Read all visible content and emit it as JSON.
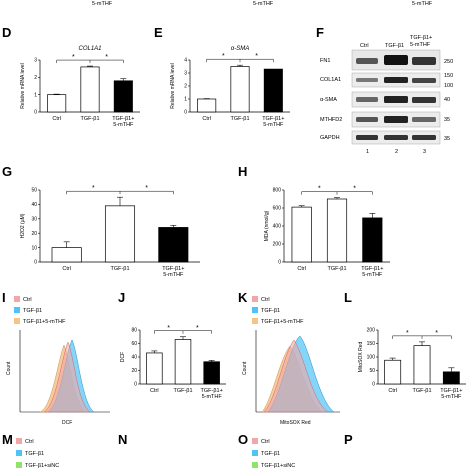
{
  "top_captions": [
    "5-mTHF",
    "5-mTHF",
    "5-mTHF"
  ],
  "panel_labels": [
    "D",
    "E",
    "F",
    "G",
    "H",
    "I",
    "J",
    "K",
    "L",
    "M",
    "N",
    "O",
    "P"
  ],
  "categories": [
    "Ctrl",
    "TGF-β1",
    "TGF-β1+ 5-mTHF"
  ],
  "colors": {
    "ctrl": "#ffffff",
    "tgf": "#ffffff",
    "mthf": "#000000",
    "hist_ctrl": "#f4a6a6",
    "hist_tgf": "#4fc3f7",
    "hist_mthf": "#f5c48a",
    "hist_sinc": "#8fe36b"
  },
  "chart_data": [
    {
      "id": "D",
      "type": "bar",
      "title": "COL1A1",
      "ylabel": "Relative mRNA level",
      "ylim": [
        0,
        3
      ],
      "yticks": [
        "0",
        "1",
        "2",
        "3"
      ],
      "categories": [
        "Ctrl",
        "TGF-β1",
        "TGF-β1+ 5-mTHF"
      ],
      "values": [
        1.0,
        2.6,
        1.8
      ],
      "errors": [
        0.03,
        0.05,
        0.12
      ],
      "sig": [
        "*",
        "*"
      ]
    },
    {
      "id": "E",
      "type": "bar",
      "title": "α-SMA",
      "ylabel": "Relative mRNA level",
      "ylim": [
        0,
        4
      ],
      "yticks": [
        "0",
        "1",
        "2",
        "3",
        "4"
      ],
      "categories": [
        "Ctrl",
        "TGF-β1",
        "TGF-β1+ 5-mTHF"
      ],
      "values": [
        1.0,
        3.5,
        3.3
      ],
      "errors": [
        0.03,
        0.1,
        0.0
      ],
      "sig": [
        "*",
        "*"
      ]
    },
    {
      "id": "G",
      "type": "bar",
      "title": "",
      "ylabel": "H2O2 (μM)",
      "ylim": [
        0,
        50
      ],
      "yticks": [
        "0",
        "10",
        "20",
        "30",
        "40",
        "50"
      ],
      "categories": [
        "Ctrl",
        "TGF-β1",
        "TGF-β1+ 5-mTHF"
      ],
      "values": [
        10,
        39,
        24
      ],
      "errors": [
        4,
        6,
        1.5
      ],
      "sig": [
        "*",
        "*"
      ]
    },
    {
      "id": "H",
      "type": "bar",
      "title": "",
      "ylabel": "MDA (nmol/g)",
      "ylim": [
        0,
        800
      ],
      "yticks": [
        "0",
        "200",
        "400",
        "600",
        "800"
      ],
      "categories": [
        "Ctrl",
        "TGF-β1",
        "TGF-β1+ 5-mTHF"
      ],
      "values": [
        610,
        700,
        490
      ],
      "errors": [
        15,
        15,
        50
      ],
      "sig": [
        "*",
        "*"
      ]
    },
    {
      "id": "J",
      "type": "bar",
      "title": "",
      "ylabel": "DCF",
      "ylim": [
        0,
        80
      ],
      "yticks": [
        "0",
        "20",
        "40",
        "60",
        "80"
      ],
      "categories": [
        "Ctrl",
        "TGF-β1",
        "TGF-β1+ 5-mTHF"
      ],
      "values": [
        46,
        66,
        33
      ],
      "errors": [
        3,
        4,
        2
      ],
      "sig": [
        "*",
        "*"
      ]
    },
    {
      "id": "L",
      "type": "bar",
      "title": "",
      "ylabel": "MitoSOX Red",
      "ylim": [
        0,
        200
      ],
      "yticks": [
        "0",
        "50",
        "100",
        "150",
        "200"
      ],
      "categories": [
        "Ctrl",
        "TGF-β1",
        "TGF-β1+ 5-mTHF"
      ],
      "values": [
        88,
        142,
        45
      ],
      "errors": [
        8,
        14,
        15
      ],
      "sig": [
        "*",
        "*"
      ]
    }
  ],
  "flow_panels": [
    {
      "id": "I",
      "xlabel": "DCF",
      "ylabel": "Count",
      "legend": [
        "Ctrl",
        "TGF-β1",
        "TGF-β1+5-mTHF"
      ]
    },
    {
      "id": "K",
      "xlabel": "MitoSOX Red",
      "ylabel": "Count",
      "legend": [
        "Ctrl",
        "TGF-β1",
        "TGF-β1+5-mTHF"
      ]
    }
  ],
  "bottom_legends": {
    "M": [
      "Ctrl",
      "TGF-β1",
      "TGF-β1+siNC"
    ],
    "O": [
      "Ctrl",
      "TGF-β1",
      "TGF-β1+siNC"
    ]
  },
  "western": {
    "lanes": [
      "Ctrl",
      "TGF-β1",
      "TGF-β1+ 5-mTHF"
    ],
    "lane_numbers": [
      "1",
      "2",
      "3"
    ],
    "proteins": [
      "FN1",
      "COL1A1",
      "α-SMA",
      "MTHFD2",
      "GAPDH"
    ],
    "markers": [
      "250",
      "150",
      "100",
      "40",
      "35",
      "35"
    ]
  }
}
